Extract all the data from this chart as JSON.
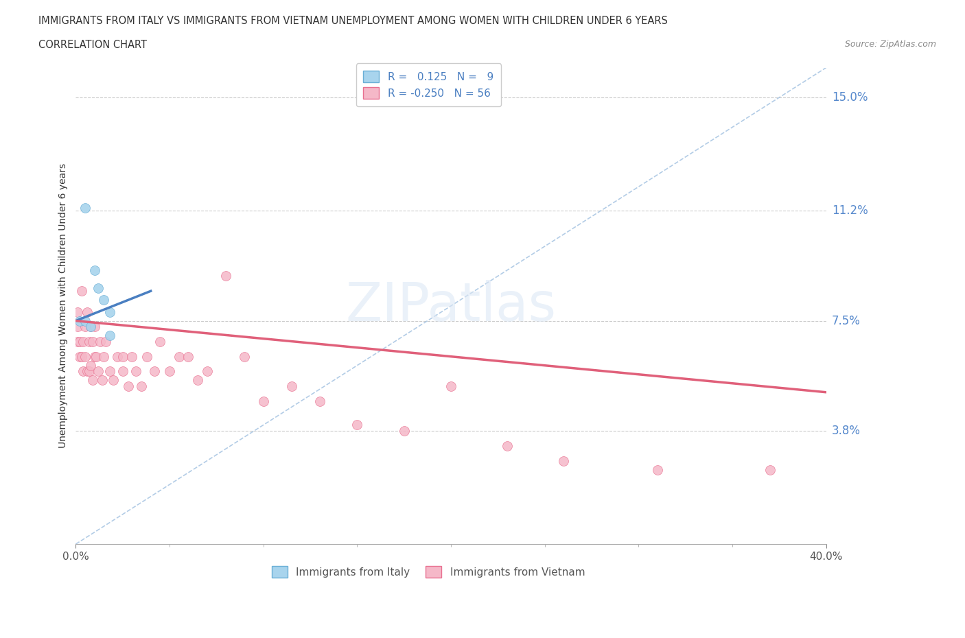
{
  "title_line1": "IMMIGRANTS FROM ITALY VS IMMIGRANTS FROM VIETNAM UNEMPLOYMENT AMONG WOMEN WITH CHILDREN UNDER 6 YEARS",
  "title_line2": "CORRELATION CHART",
  "source": "Source: ZipAtlas.com",
  "ylabel": "Unemployment Among Women with Children Under 6 years",
  "xlim": [
    0.0,
    0.4
  ],
  "ylim": [
    0.0,
    0.16
  ],
  "yticks": [
    0.038,
    0.075,
    0.112,
    0.15
  ],
  "ytick_labels": [
    "3.8%",
    "7.5%",
    "11.2%",
    "15.0%"
  ],
  "xticks": [
    0.0,
    0.4
  ],
  "xtick_labels": [
    "0.0%",
    "40.0%"
  ],
  "legend_italy_r_val": "0.125",
  "legend_italy_n_val": "9",
  "legend_vietnam_r_val": "-0.250",
  "legend_vietnam_n_val": "56",
  "color_italy_fill": "#a8d4ed",
  "color_italy_edge": "#6aafd6",
  "color_vietnam_fill": "#f5b8c8",
  "color_vietnam_edge": "#e87090",
  "color_trend_italy": "#4a7fc1",
  "color_trend_vietnam": "#e0607a",
  "color_refline": "#a0c0e0",
  "italy_trend_x0": 0.0,
  "italy_trend_y0": 0.075,
  "italy_trend_x1": 0.04,
  "italy_trend_y1": 0.085,
  "vietnam_trend_x0": 0.0,
  "vietnam_trend_y0": 0.075,
  "vietnam_trend_x1": 0.4,
  "vietnam_trend_y1": 0.051,
  "italy_x": [
    0.002,
    0.005,
    0.005,
    0.008,
    0.01,
    0.012,
    0.015,
    0.018,
    0.018
  ],
  "italy_y": [
    0.075,
    0.113,
    0.075,
    0.073,
    0.092,
    0.086,
    0.082,
    0.078,
    0.07
  ],
  "vietnam_x": [
    0.001,
    0.001,
    0.001,
    0.002,
    0.002,
    0.003,
    0.003,
    0.004,
    0.004,
    0.005,
    0.005,
    0.006,
    0.006,
    0.007,
    0.007,
    0.008,
    0.008,
    0.009,
    0.009,
    0.01,
    0.01,
    0.011,
    0.012,
    0.013,
    0.014,
    0.015,
    0.016,
    0.018,
    0.02,
    0.022,
    0.025,
    0.025,
    0.028,
    0.03,
    0.032,
    0.035,
    0.038,
    0.042,
    0.045,
    0.05,
    0.055,
    0.06,
    0.065,
    0.07,
    0.08,
    0.09,
    0.1,
    0.115,
    0.13,
    0.15,
    0.175,
    0.2,
    0.23,
    0.26,
    0.31,
    0.37
  ],
  "vietnam_y": [
    0.068,
    0.073,
    0.078,
    0.063,
    0.068,
    0.063,
    0.085,
    0.058,
    0.068,
    0.063,
    0.073,
    0.058,
    0.078,
    0.058,
    0.068,
    0.06,
    0.073,
    0.055,
    0.068,
    0.063,
    0.073,
    0.063,
    0.058,
    0.068,
    0.055,
    0.063,
    0.068,
    0.058,
    0.055,
    0.063,
    0.058,
    0.063,
    0.053,
    0.063,
    0.058,
    0.053,
    0.063,
    0.058,
    0.068,
    0.058,
    0.063,
    0.063,
    0.055,
    0.058,
    0.09,
    0.063,
    0.048,
    0.053,
    0.048,
    0.04,
    0.038,
    0.053,
    0.033,
    0.028,
    0.025,
    0.025
  ]
}
